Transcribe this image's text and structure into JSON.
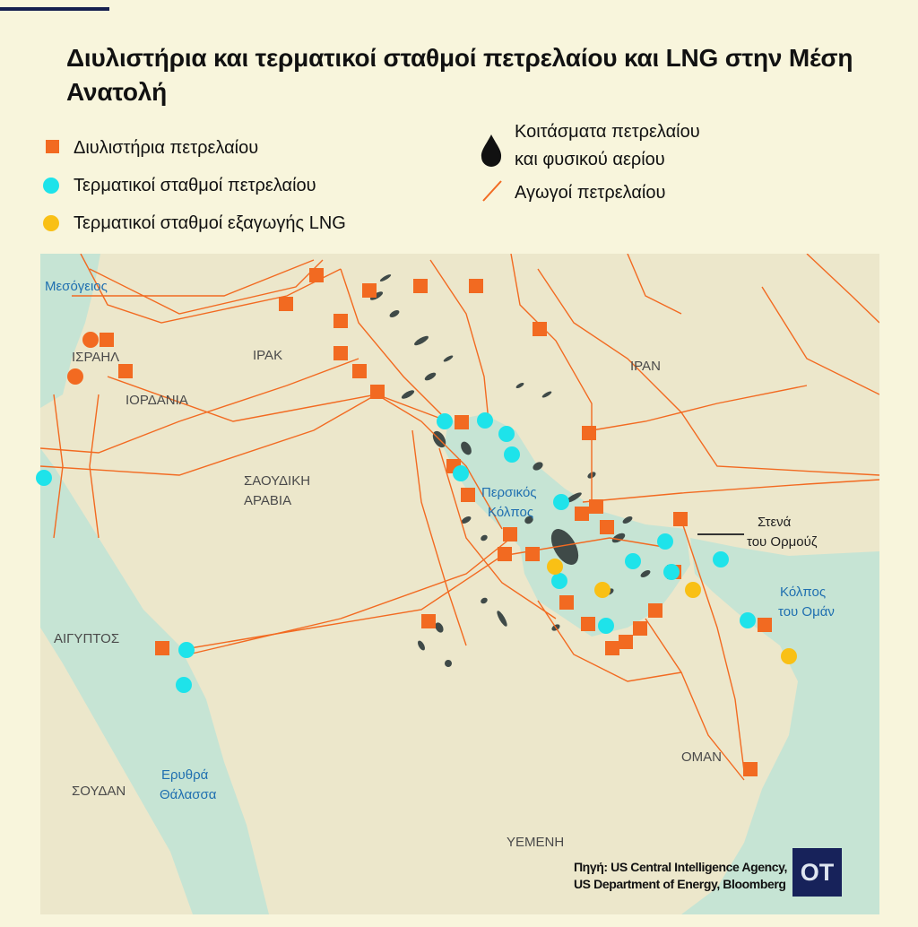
{
  "title": "Διυλιστήρια και τερματικοί σταθμοί πετρελαίου και LNG στην Μέση Ανατολή",
  "legend": {
    "refineries": "Διυλιστήρια πετρελαίου",
    "oil_terminals": "Τερματικοί σταθμοί πετρελαίου",
    "lng_terminals": "Τερματικοί σταθμοί εξαγωγής LNG",
    "fields_line1": "Κοιτάσματα πετρελαίου",
    "fields_line2": "και φυσικού αερίου",
    "pipelines": "Αγωγοί πετρελαίου"
  },
  "colors": {
    "refinery": "#f26a21",
    "oil_terminal": "#1ee3ea",
    "lng_terminal": "#f9c015",
    "pipeline": "#f26a21",
    "field": "#3f4a48",
    "sea": "#c6e4d4",
    "land": "#ece7cb",
    "logo_bg": "#17225a"
  },
  "map_labels": {
    "med": "Μεσόγειος",
    "israel": "ΙΣΡΑΗΛ",
    "iraq": "ΙΡΑΚ",
    "jordan": "ΙΟΡΔΑΝΙΑ",
    "iran": "ΙΡΑΝ",
    "saudi_1": "ΣΑΟΥΔΙΚΗ",
    "saudi_2": "ΑΡΑΒΙΑ",
    "gulf_1": "Περσικός",
    "gulf_2": "Κόλπος",
    "hormuz_1": "Στενά",
    "hormuz_2": "του Ορμούζ",
    "oman_gulf_1": "Κόλπος",
    "oman_gulf_2": "του Ομάν",
    "egypt": "ΑΙΓΥΠΤΟΣ",
    "oman": "ΟΜΑΝ",
    "red_sea_1": "Ερυθρά",
    "red_sea_2": "Θάλασσα",
    "sudan": "ΣΟΥΔΑΝ",
    "yemen": "ΥΕΜΕΝΗ"
  },
  "source_line1": "Πηγή: US Central Intelligence Agency,",
  "source_line2": "US Department of Energy, Bloomberg",
  "logo": "OT"
}
